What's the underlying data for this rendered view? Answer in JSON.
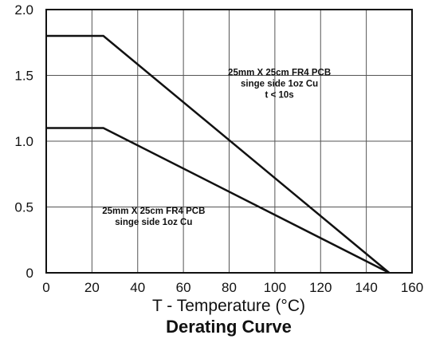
{
  "chart_data": {
    "type": "line",
    "title": "",
    "caption": "Derating Curve",
    "xlabel": "T - Temperature (°C)",
    "ylabel": "",
    "xlim": [
      0,
      160
    ],
    "ylim": [
      0,
      2.0
    ],
    "x_ticks": [
      0,
      20,
      40,
      60,
      80,
      100,
      120,
      140,
      160
    ],
    "y_ticks": [
      0,
      0.5,
      1.0,
      1.5,
      2.0
    ],
    "x_tick_labels": [
      "0",
      "20",
      "40",
      "60",
      "80",
      "100",
      "120",
      "140",
      "160"
    ],
    "y_tick_labels": [
      "0",
      "0.5",
      "1.0",
      "1.5",
      "2.0"
    ],
    "grid": true,
    "series": [
      {
        "x": [
          0,
          25,
          150
        ],
        "y": [
          1.8,
          1.8,
          0
        ],
        "color": "#111111"
      },
      {
        "x": [
          0,
          25,
          150
        ],
        "y": [
          1.1,
          1.1,
          0
        ],
        "color": "#111111"
      }
    ],
    "annotations": [
      {
        "lines": [
          "25mm X 25cm FR4 PCB",
          "singe side 1oz Cu",
          "t < 10s"
        ],
        "x": 102,
        "y": 1.5
      },
      {
        "lines": [
          "25mm X 25cm FR4 PCB",
          "singe side 1oz Cu"
        ],
        "x": 47,
        "y": 0.45
      }
    ]
  }
}
